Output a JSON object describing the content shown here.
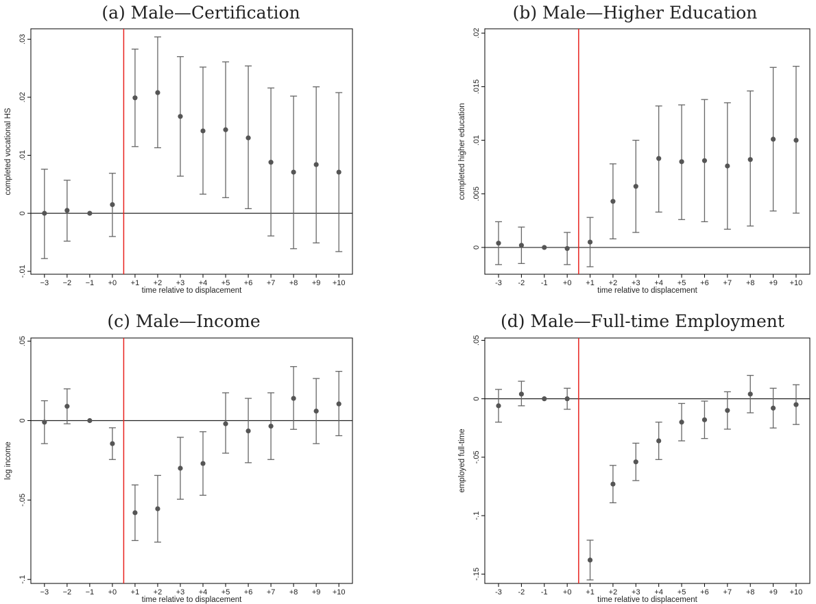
{
  "chart_data": [
    {
      "type": "scatter",
      "title": "(a) Male—Certification",
      "xlabel": "time relative to displacement",
      "ylabel": "completed vocational HS",
      "xticks": [
        "−3",
        "−2",
        "−1",
        "+0",
        "+1",
        "+2",
        "+3",
        "+4",
        "+5",
        "+6",
        "+7",
        "+8",
        "+9",
        "+10"
      ],
      "x": [
        -3,
        -2,
        -1,
        0,
        1,
        2,
        3,
        4,
        5,
        6,
        7,
        8,
        9,
        10
      ],
      "y": [
        0.0,
        0.0005,
        0.0,
        0.0015,
        0.0199,
        0.0208,
        0.0167,
        0.0142,
        0.0144,
        0.013,
        0.0088,
        0.0071,
        0.0084,
        0.0071
      ],
      "ci_low": [
        -0.0078,
        -0.0048,
        0.0,
        -0.004,
        0.0115,
        0.0113,
        0.0064,
        0.0033,
        0.0027,
        0.0008,
        -0.0039,
        -0.0061,
        -0.0051,
        -0.0066
      ],
      "ci_high": [
        0.0076,
        0.0057,
        0.0,
        0.0069,
        0.0283,
        0.0304,
        0.027,
        0.0252,
        0.0261,
        0.0254,
        0.0216,
        0.0202,
        0.0218,
        0.0208
      ],
      "ylim": [
        -0.0105,
        0.0318
      ],
      "yticks": [
        -0.01,
        0,
        0.01,
        0.02,
        0.03
      ],
      "yticklabels": [
        "-.01",
        "0",
        ".01",
        ".02",
        ".03"
      ],
      "reference_line": 0.5
    },
    {
      "type": "scatter",
      "title": "(b) Male—Higher Education",
      "xlabel": "time relative to displacement",
      "ylabel": "completed higher education",
      "xticks": [
        "-3",
        "-2",
        "-1",
        "+0",
        "+1",
        "+2",
        "+3",
        "+4",
        "+5",
        "+6",
        "+7",
        "+8",
        "+9",
        "+10"
      ],
      "x": [
        -3,
        -2,
        -1,
        0,
        1,
        2,
        3,
        4,
        5,
        6,
        7,
        8,
        9,
        10
      ],
      "y": [
        0.0004,
        0.0002,
        0.0,
        -0.0001,
        0.0005,
        0.0043,
        0.0057,
        0.0083,
        0.008,
        0.0081,
        0.0076,
        0.0082,
        0.0101,
        0.01
      ],
      "ci_low": [
        -0.0016,
        -0.0015,
        0.0,
        -0.0016,
        -0.0018,
        0.0008,
        0.0014,
        0.0033,
        0.0026,
        0.0024,
        0.0017,
        0.002,
        0.0034,
        0.0032
      ],
      "ci_high": [
        0.0024,
        0.0019,
        0.0,
        0.0014,
        0.0028,
        0.0078,
        0.01,
        0.0132,
        0.0133,
        0.0138,
        0.0135,
        0.0146,
        0.0168,
        0.0169
      ],
      "ylim": [
        -0.0025,
        0.0204
      ],
      "yticks": [
        0,
        0.005,
        0.01,
        0.015,
        0.02
      ],
      "yticklabels": [
        "0",
        ".005",
        ".01",
        ".015",
        ".02"
      ],
      "reference_line": 0.5
    },
    {
      "type": "scatter",
      "title": "(c) Male—Income",
      "xlabel": "time relative to displacement",
      "ylabel": "log income",
      "xticks": [
        "−3",
        "−2",
        "−1",
        "+0",
        "+1",
        "+2",
        "+3",
        "+4",
        "+5",
        "+6",
        "+7",
        "+8",
        "+9",
        "+10"
      ],
      "x": [
        -3,
        -2,
        -1,
        0,
        1,
        2,
        3,
        4,
        5,
        6,
        7,
        8,
        9,
        10
      ],
      "y": [
        -0.001,
        0.009,
        0.0,
        -0.0145,
        -0.058,
        -0.0555,
        -0.03,
        -0.027,
        -0.002,
        -0.0065,
        -0.0035,
        0.014,
        0.006,
        0.0105
      ],
      "ci_low": [
        -0.0145,
        -0.002,
        0.0,
        -0.0245,
        -0.0755,
        -0.0765,
        -0.0495,
        -0.047,
        -0.0205,
        -0.0265,
        -0.0245,
        -0.0055,
        -0.0145,
        -0.0095
      ],
      "ci_high": [
        0.0125,
        0.02,
        0.0,
        -0.0045,
        -0.0405,
        -0.0345,
        -0.0105,
        -0.007,
        0.0175,
        0.014,
        0.0175,
        0.034,
        0.0265,
        0.031
      ],
      "ylim": [
        -0.1025,
        0.052
      ],
      "yticks": [
        -0.1,
        -0.05,
        0,
        0.05
      ],
      "yticklabels": [
        "-.1",
        "-.05",
        "0",
        ".05"
      ],
      "reference_line": 0.5
    },
    {
      "type": "scatter",
      "title": "(d) Male—Full-time Employment",
      "xlabel": "time relative to displacement",
      "ylabel": "employed full-time",
      "xticks": [
        "-3",
        "-2",
        "-1",
        "+0",
        "+1",
        "+2",
        "+3",
        "+4",
        "+5",
        "+6",
        "+7",
        "+8",
        "+9",
        "+10"
      ],
      "x": [
        -3,
        -2,
        -1,
        0,
        1,
        2,
        3,
        4,
        5,
        6,
        7,
        8,
        9,
        10
      ],
      "y": [
        -0.006,
        0.004,
        0.0,
        0.0,
        -0.138,
        -0.073,
        -0.054,
        -0.036,
        -0.02,
        -0.018,
        -0.01,
        0.004,
        -0.008,
        -0.005
      ],
      "ci_low": [
        -0.02,
        -0.006,
        0.0,
        -0.009,
        -0.155,
        -0.089,
        -0.07,
        -0.052,
        -0.036,
        -0.034,
        -0.026,
        -0.012,
        -0.025,
        -0.022
      ],
      "ci_high": [
        0.008,
        0.015,
        0.0,
        0.009,
        -0.121,
        -0.057,
        -0.038,
        -0.02,
        -0.004,
        -0.002,
        0.006,
        0.02,
        0.009,
        0.012
      ],
      "ylim": [
        -0.158,
        0.052
      ],
      "yticks": [
        -0.15,
        -0.1,
        -0.05,
        0,
        0.05
      ],
      "yticklabels": [
        "-.15",
        "-.1",
        "-.05",
        "0",
        ".05"
      ],
      "reference_line": 0.5
    }
  ]
}
